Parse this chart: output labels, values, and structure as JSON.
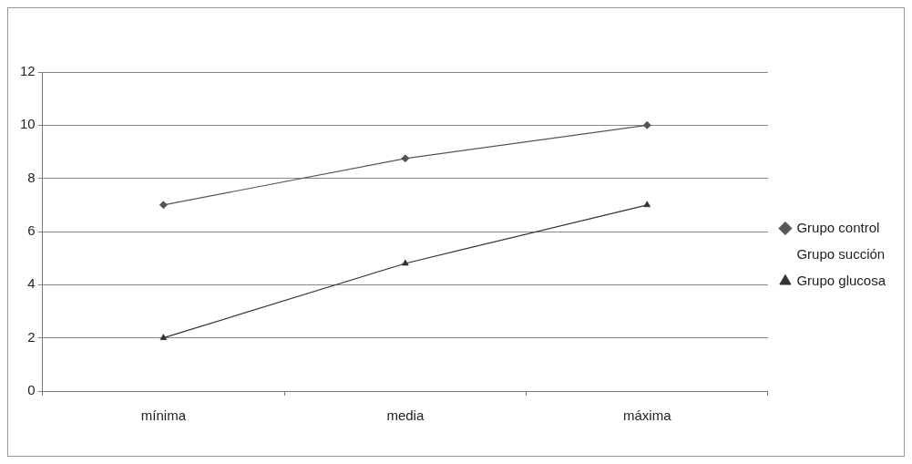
{
  "chart_data": {
    "type": "line",
    "categories": [
      "mínima",
      "media",
      "máxima"
    ],
    "series": [
      {
        "name": "Grupo control",
        "color": "#555555",
        "marker": "diamond",
        "values": [
          7,
          8.75,
          10
        ]
      },
      {
        "name": "Grupo succión",
        "marker": "none",
        "values": [
          null,
          null,
          null
        ]
      },
      {
        "name": "Grupo glucosa",
        "color": "#333333",
        "marker": "triangle",
        "values": [
          2,
          4.8,
          7
        ]
      }
    ],
    "ylim": [
      0,
      12
    ],
    "yticks": [
      0,
      2,
      4,
      6,
      8,
      10,
      12
    ],
    "grid": "y",
    "legend": "right",
    "line_style": "solid"
  }
}
